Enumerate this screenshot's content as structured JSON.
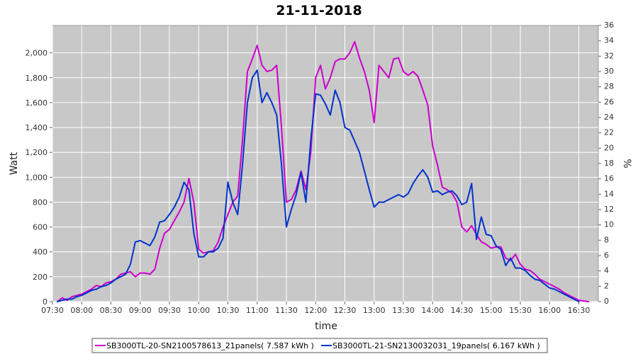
{
  "chart_data": {
    "type": "line",
    "title": "21-11-2018",
    "xlabel": "time",
    "ylabel": "Watt",
    "y2label": "%",
    "x_ticks": [
      "07:30",
      "08:00",
      "08:30",
      "09:00",
      "09:30",
      "10:00",
      "10:30",
      "11:00",
      "11:30",
      "12:00",
      "12:30",
      "13:00",
      "13:30",
      "14:00",
      "14:30",
      "15:00",
      "15:30",
      "16:00",
      "16:30"
    ],
    "y_ticks": [
      "0",
      "200",
      "400",
      "600",
      "800",
      "1,000",
      "1,200",
      "1,400",
      "1,600",
      "1,800",
      "2,000"
    ],
    "y2_ticks": [
      "0",
      "2",
      "4",
      "6",
      "8",
      "10",
      "12",
      "14",
      "16",
      "18",
      "20",
      "22",
      "24",
      "26",
      "28",
      "30",
      "32",
      "34",
      "36"
    ],
    "xlim": [
      "07:30",
      "16:50"
    ],
    "ylim": [
      0,
      2220
    ],
    "y2lim": [
      0,
      36
    ],
    "grid": true,
    "legend_position": "bottom",
    "colors": {
      "plot_bg": "#c8c8c8",
      "grid": "#ffffff",
      "series1": "#cc00cc",
      "series2": "#0033cc"
    },
    "series": [
      {
        "name": "SB3000TL-20-SN2100578613_21panels( 7.587 kWh )",
        "color": "#cc00cc",
        "points": [
          [
            "07:35",
            0
          ],
          [
            "07:40",
            30
          ],
          [
            "07:45",
            10
          ],
          [
            "07:50",
            40
          ],
          [
            "07:55",
            50
          ],
          [
            "08:00",
            60
          ],
          [
            "08:05",
            80
          ],
          [
            "08:10",
            100
          ],
          [
            "08:15",
            130
          ],
          [
            "08:20",
            120
          ],
          [
            "08:25",
            150
          ],
          [
            "08:30",
            160
          ],
          [
            "08:35",
            180
          ],
          [
            "08:40",
            220
          ],
          [
            "08:45",
            230
          ],
          [
            "08:50",
            240
          ],
          [
            "08:55",
            200
          ],
          [
            "09:00",
            230
          ],
          [
            "09:05",
            230
          ],
          [
            "09:10",
            220
          ],
          [
            "09:15",
            260
          ],
          [
            "09:20",
            430
          ],
          [
            "09:25",
            550
          ],
          [
            "09:30",
            580
          ],
          [
            "09:35",
            650
          ],
          [
            "09:40",
            720
          ],
          [
            "09:45",
            800
          ],
          [
            "09:50",
            990
          ],
          [
            "09:55",
            800
          ],
          [
            "10:00",
            420
          ],
          [
            "10:05",
            390
          ],
          [
            "10:10",
            400
          ],
          [
            "10:15",
            410
          ],
          [
            "10:20",
            480
          ],
          [
            "10:25",
            600
          ],
          [
            "10:30",
            700
          ],
          [
            "10:35",
            800
          ],
          [
            "10:40",
            850
          ],
          [
            "10:45",
            1300
          ],
          [
            "10:50",
            1850
          ],
          [
            "10:55",
            1950
          ],
          [
            "11:00",
            2060
          ],
          [
            "11:05",
            1900
          ],
          [
            "11:10",
            1850
          ],
          [
            "11:15",
            1860
          ],
          [
            "11:20",
            1900
          ],
          [
            "11:25",
            1400
          ],
          [
            "11:30",
            800
          ],
          [
            "11:35",
            820
          ],
          [
            "11:40",
            900
          ],
          [
            "11:45",
            1050
          ],
          [
            "11:50",
            900
          ],
          [
            "11:55",
            1200
          ],
          [
            "12:00",
            1800
          ],
          [
            "12:05",
            1900
          ],
          [
            "12:10",
            1710
          ],
          [
            "12:15",
            1800
          ],
          [
            "12:20",
            1930
          ],
          [
            "12:25",
            1950
          ],
          [
            "12:30",
            1950
          ],
          [
            "12:35",
            2000
          ],
          [
            "12:40",
            2090
          ],
          [
            "12:45",
            1960
          ],
          [
            "12:50",
            1850
          ],
          [
            "12:55",
            1700
          ],
          [
            "13:00",
            1440
          ],
          [
            "13:05",
            1900
          ],
          [
            "13:10",
            1850
          ],
          [
            "13:15",
            1800
          ],
          [
            "13:20",
            1950
          ],
          [
            "13:25",
            1960
          ],
          [
            "13:30",
            1850
          ],
          [
            "13:35",
            1820
          ],
          [
            "13:40",
            1850
          ],
          [
            "13:45",
            1810
          ],
          [
            "13:50",
            1700
          ],
          [
            "13:55",
            1580
          ],
          [
            "14:00",
            1250
          ],
          [
            "14:05",
            1100
          ],
          [
            "14:10",
            920
          ],
          [
            "14:15",
            900
          ],
          [
            "14:20",
            870
          ],
          [
            "14:25",
            800
          ],
          [
            "14:30",
            600
          ],
          [
            "14:35",
            560
          ],
          [
            "14:40",
            610
          ],
          [
            "14:45",
            540
          ],
          [
            "14:50",
            480
          ],
          [
            "14:55",
            460
          ],
          [
            "15:00",
            430
          ],
          [
            "15:05",
            440
          ],
          [
            "15:10",
            440
          ],
          [
            "15:15",
            350
          ],
          [
            "15:20",
            330
          ],
          [
            "15:25",
            380
          ],
          [
            "15:30",
            300
          ],
          [
            "15:35",
            260
          ],
          [
            "15:40",
            250
          ],
          [
            "15:45",
            220
          ],
          [
            "15:50",
            180
          ],
          [
            "15:55",
            160
          ],
          [
            "16:00",
            140
          ],
          [
            "16:05",
            120
          ],
          [
            "16:10",
            100
          ],
          [
            "16:15",
            70
          ],
          [
            "16:20",
            50
          ],
          [
            "16:25",
            30
          ],
          [
            "16:30",
            10
          ],
          [
            "16:40",
            0
          ]
        ]
      },
      {
        "name": "SB3000TL-21-SN2130032031_19panels( 6.167 kWh )",
        "color": "#0033cc",
        "points": [
          [
            "07:35",
            0
          ],
          [
            "07:40",
            10
          ],
          [
            "07:45",
            20
          ],
          [
            "07:50",
            20
          ],
          [
            "07:55",
            40
          ],
          [
            "08:00",
            50
          ],
          [
            "08:05",
            70
          ],
          [
            "08:10",
            90
          ],
          [
            "08:15",
            100
          ],
          [
            "08:20",
            120
          ],
          [
            "08:25",
            130
          ],
          [
            "08:30",
            150
          ],
          [
            "08:35",
            180
          ],
          [
            "08:40",
            200
          ],
          [
            "08:45",
            220
          ],
          [
            "08:50",
            300
          ],
          [
            "08:55",
            480
          ],
          [
            "09:00",
            490
          ],
          [
            "09:05",
            470
          ],
          [
            "09:10",
            450
          ],
          [
            "09:15",
            520
          ],
          [
            "09:20",
            640
          ],
          [
            "09:25",
            650
          ],
          [
            "09:30",
            700
          ],
          [
            "09:35",
            760
          ],
          [
            "09:40",
            840
          ],
          [
            "09:45",
            960
          ],
          [
            "09:50",
            900
          ],
          [
            "09:55",
            550
          ],
          [
            "10:00",
            360
          ],
          [
            "10:05",
            360
          ],
          [
            "10:10",
            400
          ],
          [
            "10:15",
            400
          ],
          [
            "10:20",
            430
          ],
          [
            "10:25",
            510
          ],
          [
            "10:30",
            960
          ],
          [
            "10:35",
            800
          ],
          [
            "10:40",
            700
          ],
          [
            "10:45",
            1100
          ],
          [
            "10:50",
            1600
          ],
          [
            "10:55",
            1800
          ],
          [
            "11:00",
            1860
          ],
          [
            "11:05",
            1600
          ],
          [
            "11:10",
            1680
          ],
          [
            "11:15",
            1600
          ],
          [
            "11:20",
            1500
          ],
          [
            "11:25",
            1100
          ],
          [
            "11:30",
            600
          ],
          [
            "11:35",
            740
          ],
          [
            "11:40",
            860
          ],
          [
            "11:45",
            1040
          ],
          [
            "11:50",
            800
          ],
          [
            "11:55",
            1300
          ],
          [
            "12:00",
            1670
          ],
          [
            "12:05",
            1660
          ],
          [
            "12:10",
            1590
          ],
          [
            "12:15",
            1500
          ],
          [
            "12:20",
            1700
          ],
          [
            "12:25",
            1600
          ],
          [
            "12:30",
            1400
          ],
          [
            "12:35",
            1380
          ],
          [
            "12:40",
            1290
          ],
          [
            "12:45",
            1200
          ],
          [
            "12:50",
            1050
          ],
          [
            "12:55",
            900
          ],
          [
            "13:00",
            760
          ],
          [
            "13:05",
            800
          ],
          [
            "13:10",
            800
          ],
          [
            "13:15",
            820
          ],
          [
            "13:20",
            840
          ],
          [
            "13:25",
            860
          ],
          [
            "13:30",
            840
          ],
          [
            "13:35",
            870
          ],
          [
            "13:40",
            950
          ],
          [
            "13:45",
            1010
          ],
          [
            "13:50",
            1060
          ],
          [
            "13:55",
            1000
          ],
          [
            "14:00",
            880
          ],
          [
            "14:05",
            890
          ],
          [
            "14:10",
            860
          ],
          [
            "14:15",
            880
          ],
          [
            "14:20",
            890
          ],
          [
            "14:25",
            850
          ],
          [
            "14:30",
            780
          ],
          [
            "14:35",
            800
          ],
          [
            "14:40",
            950
          ],
          [
            "14:45",
            500
          ],
          [
            "14:50",
            680
          ],
          [
            "14:55",
            540
          ],
          [
            "15:00",
            530
          ],
          [
            "15:05",
            450
          ],
          [
            "15:10",
            420
          ],
          [
            "15:15",
            290
          ],
          [
            "15:20",
            350
          ],
          [
            "15:25",
            270
          ],
          [
            "15:30",
            270
          ],
          [
            "15:35",
            250
          ],
          [
            "15:40",
            210
          ],
          [
            "15:45",
            180
          ],
          [
            "15:50",
            170
          ],
          [
            "15:55",
            140
          ],
          [
            "16:00",
            110
          ],
          [
            "16:05",
            100
          ],
          [
            "16:10",
            80
          ],
          [
            "16:15",
            60
          ],
          [
            "16:20",
            40
          ],
          [
            "16:25",
            20
          ],
          [
            "16:30",
            0
          ]
        ]
      }
    ]
  }
}
